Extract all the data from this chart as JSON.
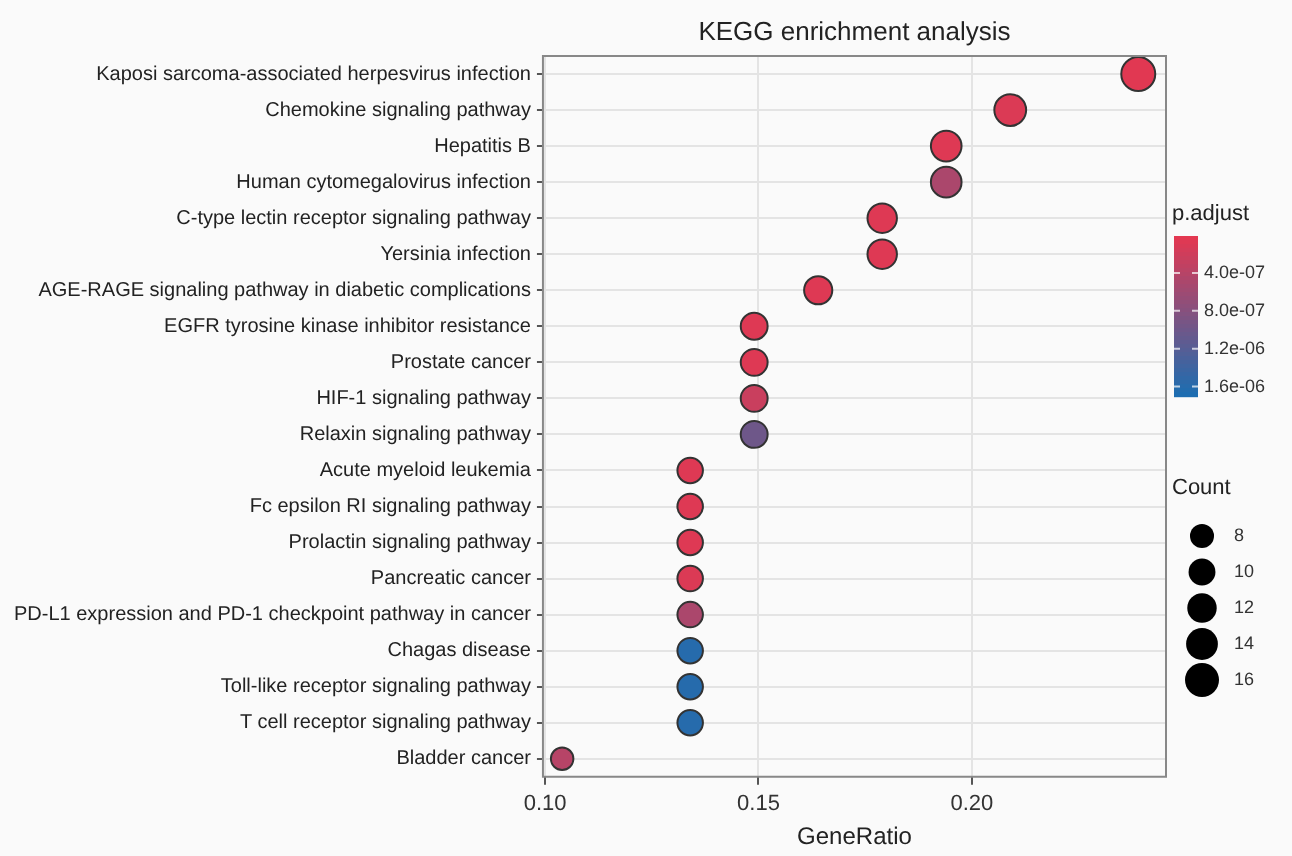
{
  "chart_data": {
    "type": "bubble",
    "title": "KEGG enrichment analysis",
    "xlabel": "GeneRatio",
    "clabel": "p.adjust",
    "legend_title": "Count",
    "orientation": "horizontal",
    "categories": [
      "Kaposi sarcoma-associated herpesvirus infection",
      "Chemokine signaling pathway",
      "Hepatitis B",
      "Human cytomegalovirus infection",
      "C-type lectin receptor signaling pathway",
      "Yersinia infection",
      "AGE-RAGE signaling pathway in diabetic complications",
      "EGFR tyrosine kinase inhibitor resistance",
      "Prostate cancer",
      "HIF-1 signaling pathway",
      "Relaxin signaling pathway",
      "Acute myeloid leukemia",
      "Fc epsilon RI signaling pathway",
      "Prolactin signaling pathway",
      "Pancreatic cancer",
      "PD-L1 expression and PD-1 checkpoint pathway in cancer",
      "Chagas disease",
      "Toll-like receptor signaling pathway",
      "T cell receptor signaling pathway",
      "Bladder cancer"
    ],
    "values": [
      0.239,
      0.209,
      0.194,
      0.194,
      0.179,
      0.179,
      0.164,
      0.149,
      0.149,
      0.149,
      0.149,
      0.134,
      0.134,
      0.134,
      0.134,
      0.134,
      0.134,
      0.134,
      0.134,
      0.104
    ],
    "sizes": [
      16,
      14,
      13,
      13,
      12,
      12,
      11,
      10,
      10,
      10,
      10,
      9,
      9,
      9,
      9,
      9,
      9,
      9,
      9,
      7
    ],
    "cvalues": [
      5e-08,
      1e-07,
      8e-08,
      5e-07,
      8e-08,
      8e-08,
      8e-08,
      8e-08,
      8e-08,
      2.5e-07,
      1e-06,
      8e-08,
      8e-08,
      8e-08,
      1e-07,
      5e-07,
      1.6e-06,
      1.6e-06,
      1.6e-06,
      4e-07
    ],
    "size_legend": [
      8,
      10,
      12,
      14,
      16
    ],
    "clim": [
      1e-08,
      1.7e-06
    ],
    "cticks": [
      {
        "value": 4e-07,
        "label": "4.0e-07"
      },
      {
        "value": 8e-07,
        "label": "8.0e-07"
      },
      {
        "value": 1.2e-06,
        "label": "1.2e-06"
      },
      {
        "value": 1.6e-06,
        "label": "1.6e-06"
      }
    ],
    "xlim": [
      0.0995,
      0.2455
    ],
    "xticks": [
      {
        "value": 0.1,
        "label": "0.10"
      },
      0.15,
      {
        "value": 0.2,
        "label": "0.20"
      }
    ],
    "grid": true
  }
}
